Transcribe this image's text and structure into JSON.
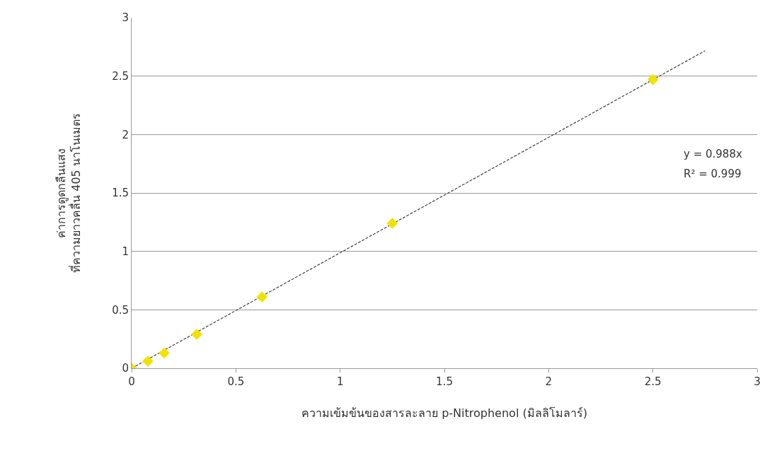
{
  "chart_data": {
    "type": "scatter",
    "xlabel": "ความเข้มข้นของสารละลาย p-Nitrophenol (มิลลิโมลาร์)",
    "ylabel": "ค่าการดูดกลืนแสง\nที่ความยาวคลื่น 405 นาโนเมตร",
    "series": [
      {
        "color": "#f2e200",
        "x": [
          0,
          0.078,
          0.156,
          0.3125,
          0.625,
          1.25,
          2.5
        ],
        "values": [
          0,
          0.06,
          0.13,
          0.29,
          0.61,
          1.24,
          2.47
        ],
        "marker": "diamond"
      },
      {
        "type": "line",
        "color": "#404040",
        "x": [
          0,
          2.75
        ],
        "values": [
          0,
          2.717
        ],
        "line_style": "dashed"
      }
    ],
    "annotations": [
      "y = 0.988x",
      "R² = 0.999"
    ],
    "xlim": [
      0,
      3
    ],
    "xticks": [
      0,
      0.5,
      1,
      1.5,
      2,
      2.5,
      3
    ],
    "ylim": [
      0,
      3
    ],
    "yticks": [
      0,
      0.5,
      1,
      1.5,
      2,
      2.5,
      3
    ],
    "grid": "y",
    "legend": false
  }
}
